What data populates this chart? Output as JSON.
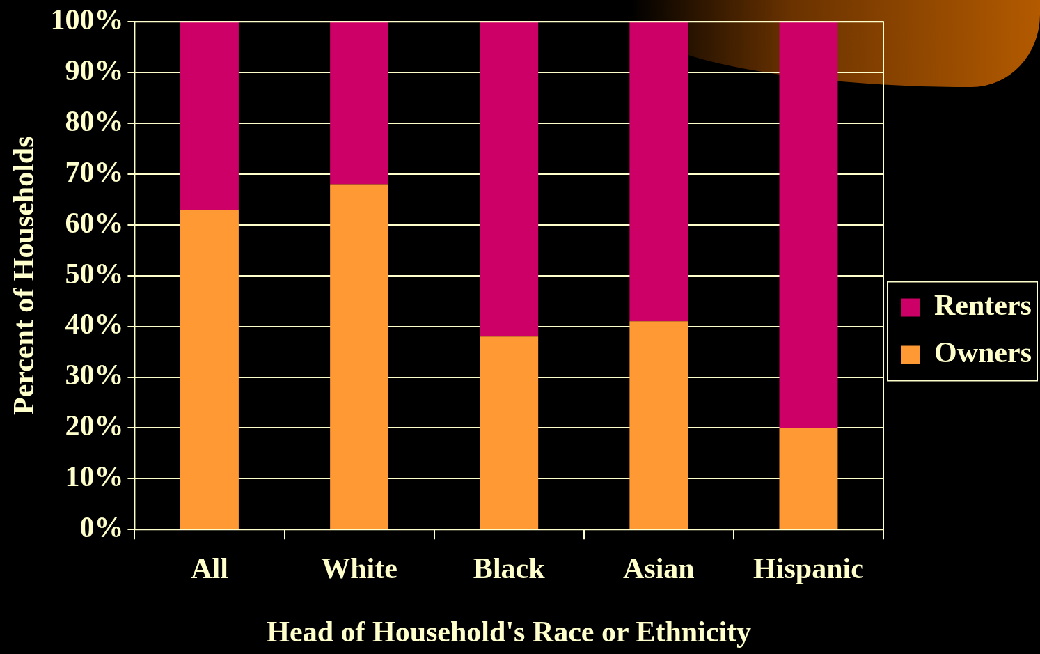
{
  "chart_data": {
    "type": "bar",
    "stacked": true,
    "xlabel": "Head of Household's Race or Ethnicity",
    "ylabel": "Percent of Households",
    "categories": [
      "All",
      "White",
      "Black",
      "Asian",
      "Hispanic"
    ],
    "series": [
      {
        "name": "Owners",
        "color": "#ff9933",
        "values": [
          63,
          68,
          38,
          41,
          20
        ]
      },
      {
        "name": "Renters",
        "color": "#cc0066",
        "values": [
          37,
          32,
          62,
          59,
          80
        ]
      }
    ],
    "ylim": [
      0,
      100
    ],
    "yticks": [
      {
        "value": 0,
        "label": "0%"
      },
      {
        "value": 10,
        "label": "10%"
      },
      {
        "value": 20,
        "label": "20%"
      },
      {
        "value": 30,
        "label": "30%"
      },
      {
        "value": 40,
        "label": "40%"
      },
      {
        "value": 50,
        "label": "50%"
      },
      {
        "value": 60,
        "label": "60%"
      },
      {
        "value": 70,
        "label": "70%"
      },
      {
        "value": 80,
        "label": "80%"
      },
      {
        "value": 90,
        "label": "90%"
      },
      {
        "value": 100,
        "label": "100%"
      }
    ],
    "grid": "y",
    "legend": "right"
  }
}
